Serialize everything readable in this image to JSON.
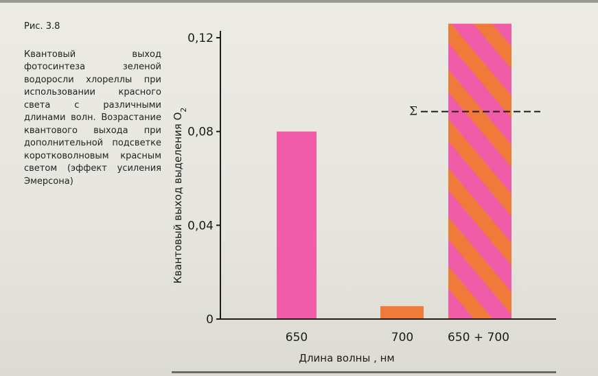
{
  "caption": {
    "figure_label": "Рис. 3.8",
    "text": "Квантовый выход фотосинтеза зеленой водоросли хлореллы при использовании красного света с различными длинами волн. Возрастание квантового выхода при дополнительной подсветке коротковолновым красным светом (эффект усиления Эмерсона)"
  },
  "chart_data": {
    "type": "bar",
    "categories": [
      "650",
      "700",
      "650 + 700"
    ],
    "values": [
      0.08,
      0.0055,
      0.126
    ],
    "ylim": [
      0,
      0.12
    ],
    "y_ticks": [
      "0",
      "0,04",
      "0,08",
      "0,12"
    ],
    "ylabel": "Квантовый выход выделения O",
    "ylabel_subscript": "2",
    "xlabel": "Длина волны , нм",
    "sum_marker": {
      "label": "Σ",
      "value": 0.0885
    },
    "bar_styles": [
      "solid-pink",
      "solid-orange",
      "striped-orange-pink"
    ],
    "colors": {
      "pink": "#f05ca8",
      "orange": "#f07a3a",
      "axis": "#1c1c1c"
    },
    "grid": false
  }
}
